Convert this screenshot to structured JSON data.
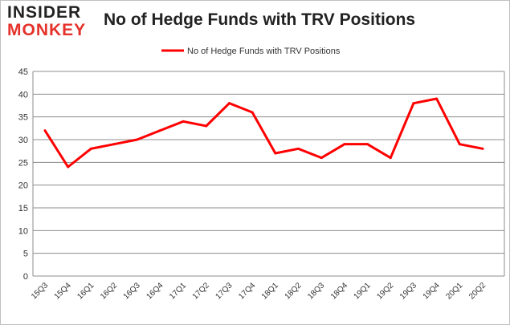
{
  "logo": {
    "line1": "INSIDER",
    "line2": "MONKEY"
  },
  "chart_data": {
    "type": "line",
    "title": "No of Hedge Funds with TRV Positions",
    "categories": [
      "15Q3",
      "15Q4",
      "16Q1",
      "16Q2",
      "16Q3",
      "16Q4",
      "17Q1",
      "17Q2",
      "17Q3",
      "17Q4",
      "18Q1",
      "18Q2",
      "18Q3",
      "18Q4",
      "19Q1",
      "19Q2",
      "19Q3",
      "19Q4",
      "20Q1",
      "20Q2"
    ],
    "series": [
      {
        "name": "No of Hedge Funds with TRV Positions",
        "color": "#ff0000",
        "values": [
          32,
          24,
          28,
          29,
          30,
          32,
          34,
          33,
          38,
          36,
          27,
          28,
          26,
          29,
          29,
          26,
          38,
          39,
          29,
          28
        ]
      }
    ],
    "ylim": [
      0,
      45
    ],
    "yticks": [
      0,
      5,
      10,
      15,
      20,
      25,
      30,
      35,
      40,
      45
    ],
    "grid": true,
    "legend": "top-center"
  }
}
